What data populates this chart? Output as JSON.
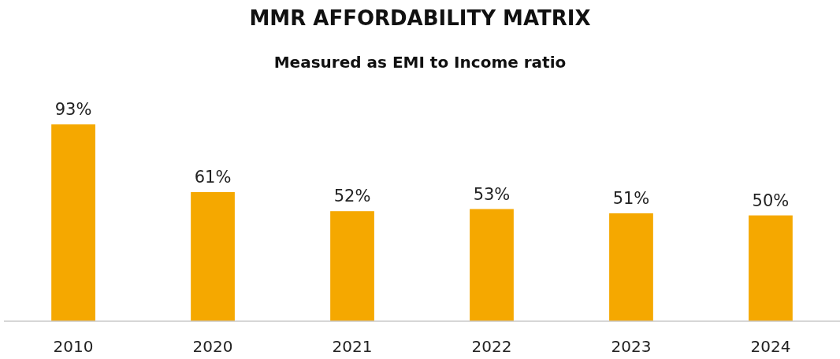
{
  "chart_data": {
    "type": "bar",
    "title": "MMR AFFORDABILITY MATRIX",
    "subtitle": "Measured as EMI to Income ratio",
    "categories": [
      "2010",
      "2020",
      "2021",
      "2022",
      "2023",
      "2024"
    ],
    "values": [
      93,
      61,
      52,
      53,
      51,
      50
    ],
    "value_labels": [
      "93%",
      "61%",
      "52%",
      "53%",
      "51%",
      "50%"
    ],
    "color": "#f5a800"
  }
}
